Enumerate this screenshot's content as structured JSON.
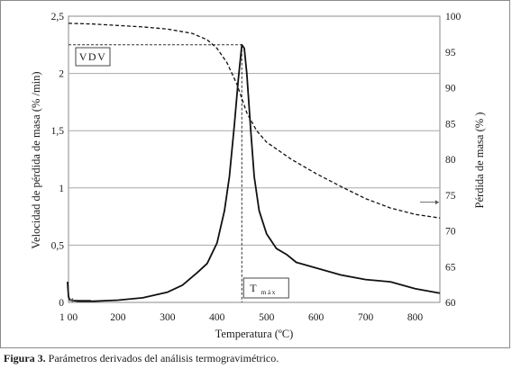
{
  "chart_data": {
    "type": "line",
    "xlabel": "Temperatura (ºC)",
    "ylabel_left": "Velocidad de pérdida de masa (% /min)",
    "ylabel_right": "Pérdida de masa (% )",
    "xlim": [
      100,
      850
    ],
    "ylim_left": [
      0,
      2.5
    ],
    "ylim_right": [
      60,
      100
    ],
    "x_ticks": [
      "1 00",
      "200",
      "300",
      "400",
      "500",
      "600",
      "700",
      "800"
    ],
    "y_left_ticks": [
      "0",
      "0,5",
      "1",
      "1,5",
      "2",
      "2,5"
    ],
    "y_right_ticks": [
      "60",
      "65",
      "70",
      "75",
      "80",
      "85",
      "90",
      "95",
      "100"
    ],
    "grid": "horizontal",
    "series": [
      {
        "axis": "left",
        "style": "solid",
        "points": [
          [
            98,
            0.18
          ],
          [
            100,
            0.05
          ],
          [
            103,
            0.02
          ],
          [
            120,
            0.01
          ],
          [
            150,
            0.01
          ],
          [
            200,
            0.02
          ],
          [
            250,
            0.04
          ],
          [
            300,
            0.09
          ],
          [
            330,
            0.15
          ],
          [
            360,
            0.26
          ],
          [
            380,
            0.34
          ],
          [
            400,
            0.52
          ],
          [
            415,
            0.8
          ],
          [
            425,
            1.1
          ],
          [
            435,
            1.55
          ],
          [
            443,
            1.95
          ],
          [
            450,
            2.25
          ],
          [
            455,
            2.22
          ],
          [
            460,
            2.0
          ],
          [
            468,
            1.5
          ],
          [
            475,
            1.1
          ],
          [
            485,
            0.8
          ],
          [
            500,
            0.6
          ],
          [
            520,
            0.47
          ],
          [
            540,
            0.42
          ],
          [
            560,
            0.35
          ],
          [
            600,
            0.3
          ],
          [
            650,
            0.24
          ],
          [
            700,
            0.2
          ],
          [
            750,
            0.18
          ],
          [
            800,
            0.12
          ],
          [
            850,
            0.08
          ]
        ]
      },
      {
        "axis": "right",
        "style": "dashed",
        "points": [
          [
            100,
            99.0
          ],
          [
            150,
            98.9
          ],
          [
            200,
            98.7
          ],
          [
            250,
            98.5
          ],
          [
            300,
            98.2
          ],
          [
            350,
            97.6
          ],
          [
            380,
            96.7
          ],
          [
            400,
            95.5
          ],
          [
            420,
            93.5
          ],
          [
            440,
            90.5
          ],
          [
            460,
            86.5
          ],
          [
            480,
            84.0
          ],
          [
            500,
            82.4
          ],
          [
            550,
            80.0
          ],
          [
            600,
            78.0
          ],
          [
            650,
            76.2
          ],
          [
            700,
            74.5
          ],
          [
            750,
            73.2
          ],
          [
            800,
            72.3
          ],
          [
            850,
            71.8
          ]
        ]
      }
    ],
    "annotations": {
      "vdv": {
        "label": "VDV",
        "value": 2.25
      },
      "tmax": {
        "label": "T",
        "subscript": "máx",
        "value": 450
      }
    }
  },
  "caption": {
    "bold": "Figura 3.",
    "text": " Parámetros derivados del análisis termogravimétrico."
  }
}
